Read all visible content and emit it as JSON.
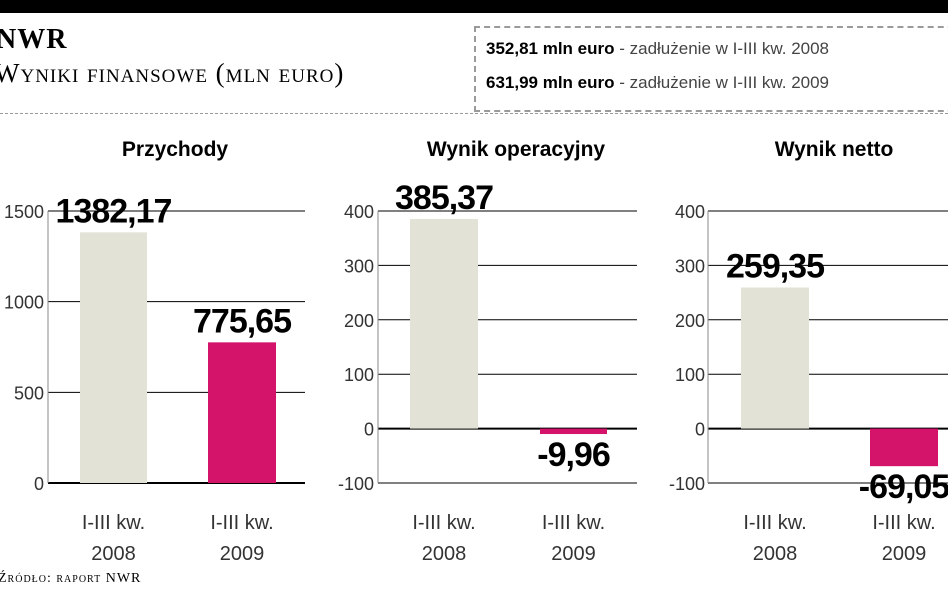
{
  "header": {
    "brand": "NWR",
    "subtitle": "Wyniki finansowe (mln euro)"
  },
  "debt_box": {
    "rows": [
      {
        "amount": "352,81 mln euro",
        "text": " - zadłużenie w I-III kw. 2008"
      },
      {
        "amount": "631,99 mln euro",
        "text": " - zadłużenie w I-III kw. 2009"
      }
    ]
  },
  "source": "Źródło: raport NWR",
  "colors": {
    "bar_2008": "#e3e2d6",
    "bar_2009": "#d4136b",
    "grid": "#000000",
    "axis_text": "#333333"
  },
  "chart_data": [
    {
      "type": "bar",
      "title": "Przychody",
      "categories": [
        "I-III kw. 2008",
        "I-III kw. 2009"
      ],
      "category_lines": [
        [
          "I-III kw.",
          "2008"
        ],
        [
          "I-III kw.",
          "2009"
        ]
      ],
      "values": [
        1382.17,
        775.65
      ],
      "value_labels": [
        "1382,17",
        "775,65"
      ],
      "ylim": [
        0,
        1500
      ],
      "yticks": [
        0,
        500,
        1000,
        1500
      ],
      "ytick_labels": [
        "0",
        "500",
        "1000",
        "1500"
      ],
      "grid": true
    },
    {
      "type": "bar",
      "title": "Wynik operacyjny",
      "categories": [
        "I-III kw. 2008",
        "I-III kw. 2009"
      ],
      "category_lines": [
        [
          "I-III kw.",
          "2008"
        ],
        [
          "I-III kw.",
          "2009"
        ]
      ],
      "values": [
        385.37,
        -9.96
      ],
      "value_labels": [
        "385,37",
        "-9,96"
      ],
      "ylim": [
        -100,
        400
      ],
      "yticks": [
        -100,
        0,
        100,
        200,
        300,
        400
      ],
      "ytick_labels": [
        "-100",
        "0",
        "100",
        "200",
        "300",
        "400"
      ],
      "grid": true
    },
    {
      "type": "bar",
      "title": "Wynik netto",
      "categories": [
        "I-III kw. 2008",
        "I-III kw. 2009"
      ],
      "category_lines": [
        [
          "I-III kw.",
          "2008"
        ],
        [
          "I-III kw.",
          "2009"
        ]
      ],
      "values": [
        259.35,
        -69.05
      ],
      "value_labels": [
        "259,35",
        "-69,05"
      ],
      "ylim": [
        -100,
        400
      ],
      "yticks": [
        -100,
        0,
        100,
        200,
        300,
        400
      ],
      "ytick_labels": [
        "-100",
        "0",
        "100",
        "200",
        "300",
        "400"
      ],
      "grid": true
    }
  ]
}
